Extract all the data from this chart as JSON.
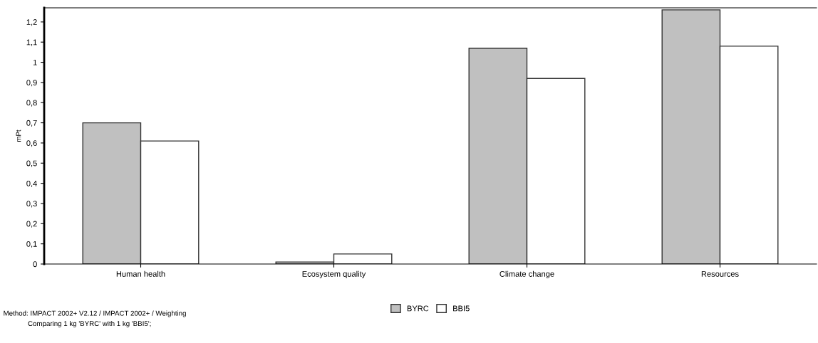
{
  "chart_data": {
    "type": "bar",
    "ylabel": "mPt",
    "categories": [
      "Human health",
      "Ecosystem quality",
      "Climate change",
      "Resources"
    ],
    "series": [
      {
        "name": "BYRC",
        "color": "#c0c0c0",
        "values": [
          0.7,
          0.01,
          1.07,
          1.26
        ]
      },
      {
        "name": "BBI5",
        "color": "#ffffff",
        "values": [
          0.61,
          0.05,
          0.92,
          1.08
        ]
      }
    ],
    "ylim": [
      0,
      1.27
    ],
    "yticks": [
      0,
      {
        "value": 0.1,
        "label": "0,1"
      },
      {
        "value": 0.2,
        "label": "0,2"
      },
      {
        "value": 0.3,
        "label": "0,3"
      },
      {
        "value": 0.4,
        "label": "0,4"
      },
      {
        "value": 0.5,
        "label": "0,5"
      },
      {
        "value": 0.6,
        "label": "0,6"
      },
      {
        "value": 0.7,
        "label": "0,7"
      },
      {
        "value": 0.8,
        "label": "0,8"
      },
      {
        "value": 0.9,
        "label": "0,9"
      },
      1,
      {
        "value": 1.1,
        "label": "1,1"
      },
      {
        "value": 1.2,
        "label": "1,2"
      }
    ],
    "grid": false,
    "legend": "bottom",
    "annotations": [
      "Method: IMPACT 2002+ V2.12 / IMPACT 2002+ / Weighting",
      "Comparing 1 kg 'BYRC' with 1 kg 'BBI5';"
    ]
  }
}
